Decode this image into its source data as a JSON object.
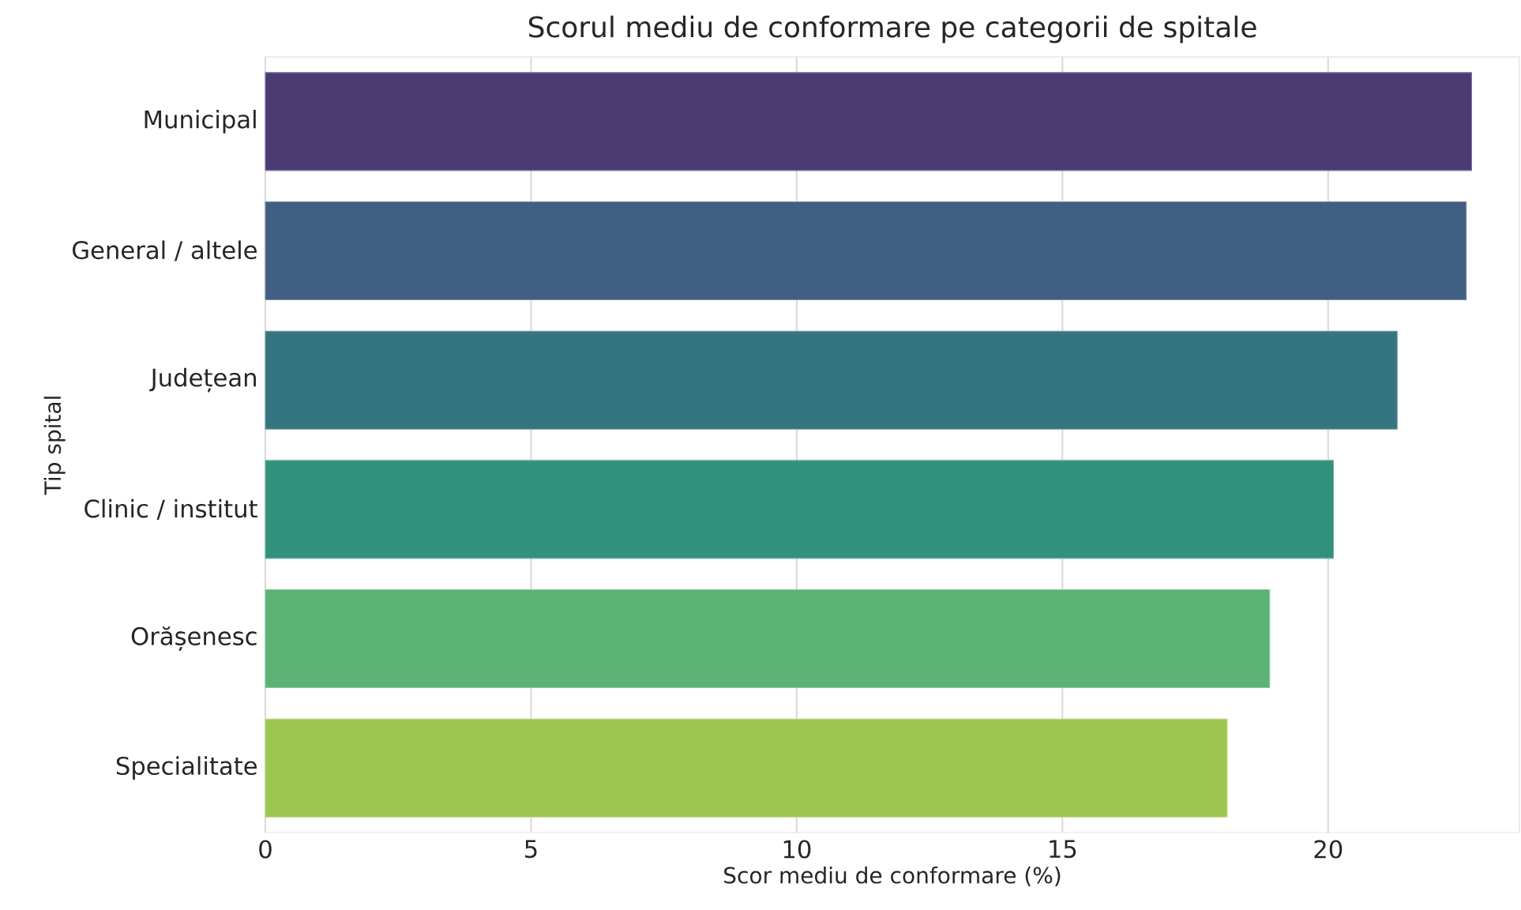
{
  "chart_data": {
    "type": "bar",
    "orientation": "horizontal",
    "title": "Scorul mediu de conformare pe categorii de spitale",
    "xlabel": "Scor mediu de conformare (%)",
    "ylabel": "Tip spital",
    "categories": [
      "Municipal",
      "General / altele",
      "Județean",
      "Clinic / institut",
      "Orășenesc",
      "Specialitate"
    ],
    "values": [
      22.7,
      22.6,
      21.3,
      20.1,
      18.9,
      18.1
    ],
    "colors": [
      "#4b3b73",
      "#415f80",
      "#357580",
      "#31917c",
      "#5bb275",
      "#9bc650"
    ],
    "xlim": [
      0,
      23.6
    ],
    "xticks": [
      0,
      5,
      10,
      15,
      20
    ],
    "grid": "x"
  }
}
